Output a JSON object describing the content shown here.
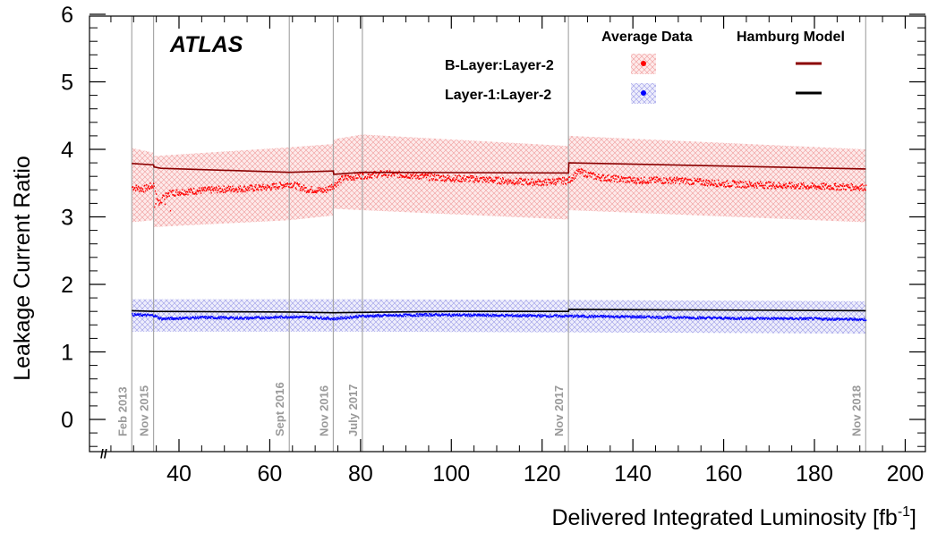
{
  "chart_data": {
    "type": "line",
    "title": "",
    "experiment_label": "ATLAS",
    "xlabel": "Delivered Integrated Luminosity [fb",
    "xlabel_sup": "-1",
    "xlabel_close": "]",
    "ylabel": "Leakage Current Ratio",
    "xlim": [
      20,
      200
    ],
    "ylim": [
      -0.5,
      6
    ],
    "x_ticks": [
      40,
      60,
      80,
      100,
      120,
      140,
      160,
      180,
      200
    ],
    "y_ticks": [
      0,
      1,
      2,
      3,
      4,
      5,
      6
    ],
    "x_tick_labels": [
      "40",
      "60",
      "80",
      "100",
      "120",
      "140",
      "160",
      "180",
      "200"
    ],
    "y_tick_labels": [
      "0",
      "1",
      "2",
      "3",
      "4",
      "5",
      "6"
    ],
    "x_axis_break_marker": "//",
    "grid": false,
    "legend_headers": [
      "Average Data",
      "Hamburg Model"
    ],
    "legend_position": "top-right",
    "events": [
      {
        "x": 29.6,
        "label": "Feb 2013"
      },
      {
        "x": 34.4,
        "label": "Nov 2015"
      },
      {
        "x": 64.3,
        "label": "Sept 2016"
      },
      {
        "x": 74.0,
        "label": "Nov 2016"
      },
      {
        "x": 80.4,
        "label": "July 2017"
      },
      {
        "x": 125.8,
        "label": "Nov 2017"
      },
      {
        "x": 191.3,
        "label": "Nov 2018"
      }
    ],
    "series": [
      {
        "name": "B-Layer:Layer-2",
        "data_color": "#ff0000",
        "band_color": "#f4a6a6",
        "model_color": "#8b0000",
        "data": [
          {
            "x": 29.6,
            "y": 3.45
          },
          {
            "x": 32,
            "y": 3.42
          },
          {
            "x": 34.4,
            "y": 3.48
          },
          {
            "x": 35.5,
            "y": 3.2
          },
          {
            "x": 37,
            "y": 3.35
          },
          {
            "x": 40,
            "y": 3.38
          },
          {
            "x": 45,
            "y": 3.4
          },
          {
            "x": 50,
            "y": 3.42
          },
          {
            "x": 55,
            "y": 3.43
          },
          {
            "x": 60,
            "y": 3.45
          },
          {
            "x": 64.3,
            "y": 3.5
          },
          {
            "x": 68,
            "y": 3.42
          },
          {
            "x": 72,
            "y": 3.4
          },
          {
            "x": 74,
            "y": 3.48
          },
          {
            "x": 76,
            "y": 3.58
          },
          {
            "x": 80,
            "y": 3.62
          },
          {
            "x": 85,
            "y": 3.65
          },
          {
            "x": 90,
            "y": 3.63
          },
          {
            "x": 95,
            "y": 3.6
          },
          {
            "x": 100,
            "y": 3.58
          },
          {
            "x": 105,
            "y": 3.57
          },
          {
            "x": 110,
            "y": 3.55
          },
          {
            "x": 115,
            "y": 3.53
          },
          {
            "x": 120,
            "y": 3.52
          },
          {
            "x": 125.8,
            "y": 3.55
          },
          {
            "x": 128,
            "y": 3.68
          },
          {
            "x": 132,
            "y": 3.6
          },
          {
            "x": 140,
            "y": 3.55
          },
          {
            "x": 150,
            "y": 3.55
          },
          {
            "x": 160,
            "y": 3.5
          },
          {
            "x": 170,
            "y": 3.48
          },
          {
            "x": 180,
            "y": 3.46
          },
          {
            "x": 191.3,
            "y": 3.45
          }
        ],
        "band": [
          {
            "x": 29.6,
            "lo": 2.92,
            "hi": 4.02
          },
          {
            "x": 34.4,
            "lo": 2.95,
            "hi": 3.95
          },
          {
            "x": 34.5,
            "lo": 2.85,
            "hi": 3.9
          },
          {
            "x": 64.3,
            "lo": 2.95,
            "hi": 4.03
          },
          {
            "x": 74.0,
            "lo": 3.02,
            "hi": 4.08
          },
          {
            "x": 74.1,
            "lo": 3.12,
            "hi": 4.15
          },
          {
            "x": 80.4,
            "lo": 3.1,
            "hi": 4.22
          },
          {
            "x": 125.8,
            "lo": 2.96,
            "hi": 4.05
          },
          {
            "x": 125.9,
            "lo": 3.1,
            "hi": 4.2
          },
          {
            "x": 191.3,
            "lo": 2.92,
            "hi": 4.0
          }
        ],
        "model": [
          {
            "x": 29.6,
            "y": 3.79
          },
          {
            "x": 34.4,
            "y": 3.77
          },
          {
            "x": 34.5,
            "y": 3.74
          },
          {
            "x": 36,
            "y": 3.72
          },
          {
            "x": 64.3,
            "y": 3.66
          },
          {
            "x": 74.0,
            "y": 3.68
          },
          {
            "x": 74.1,
            "y": 3.63
          },
          {
            "x": 80.4,
            "y": 3.66
          },
          {
            "x": 125.8,
            "y": 3.65
          },
          {
            "x": 125.9,
            "y": 3.8
          },
          {
            "x": 191.3,
            "y": 3.71
          }
        ]
      },
      {
        "name": "Layer-1:Layer-2",
        "data_color": "#0000ff",
        "band_color": "#a8a8ee",
        "model_color": "#000000",
        "data": [
          {
            "x": 29.6,
            "y": 1.56
          },
          {
            "x": 34.4,
            "y": 1.55
          },
          {
            "x": 36,
            "y": 1.5
          },
          {
            "x": 45,
            "y": 1.52
          },
          {
            "x": 55,
            "y": 1.51
          },
          {
            "x": 64.3,
            "y": 1.53
          },
          {
            "x": 70,
            "y": 1.52
          },
          {
            "x": 74,
            "y": 1.5
          },
          {
            "x": 80,
            "y": 1.54
          },
          {
            "x": 95,
            "y": 1.56
          },
          {
            "x": 110,
            "y": 1.55
          },
          {
            "x": 125.8,
            "y": 1.54
          },
          {
            "x": 140,
            "y": 1.53
          },
          {
            "x": 160,
            "y": 1.51
          },
          {
            "x": 180,
            "y": 1.5
          },
          {
            "x": 191.3,
            "y": 1.49
          }
        ],
        "band": [
          {
            "x": 29.6,
            "lo": 1.3,
            "hi": 1.78
          },
          {
            "x": 80.4,
            "lo": 1.3,
            "hi": 1.78
          },
          {
            "x": 125.8,
            "lo": 1.29,
            "hi": 1.77
          },
          {
            "x": 191.3,
            "lo": 1.27,
            "hi": 1.75
          }
        ],
        "model": [
          {
            "x": 29.6,
            "y": 1.61
          },
          {
            "x": 34.4,
            "y": 1.6
          },
          {
            "x": 64.3,
            "y": 1.59
          },
          {
            "x": 74,
            "y": 1.58
          },
          {
            "x": 100,
            "y": 1.6
          },
          {
            "x": 125.8,
            "y": 1.6
          },
          {
            "x": 125.9,
            "y": 1.63
          },
          {
            "x": 191.3,
            "y": 1.61
          }
        ]
      }
    ]
  }
}
